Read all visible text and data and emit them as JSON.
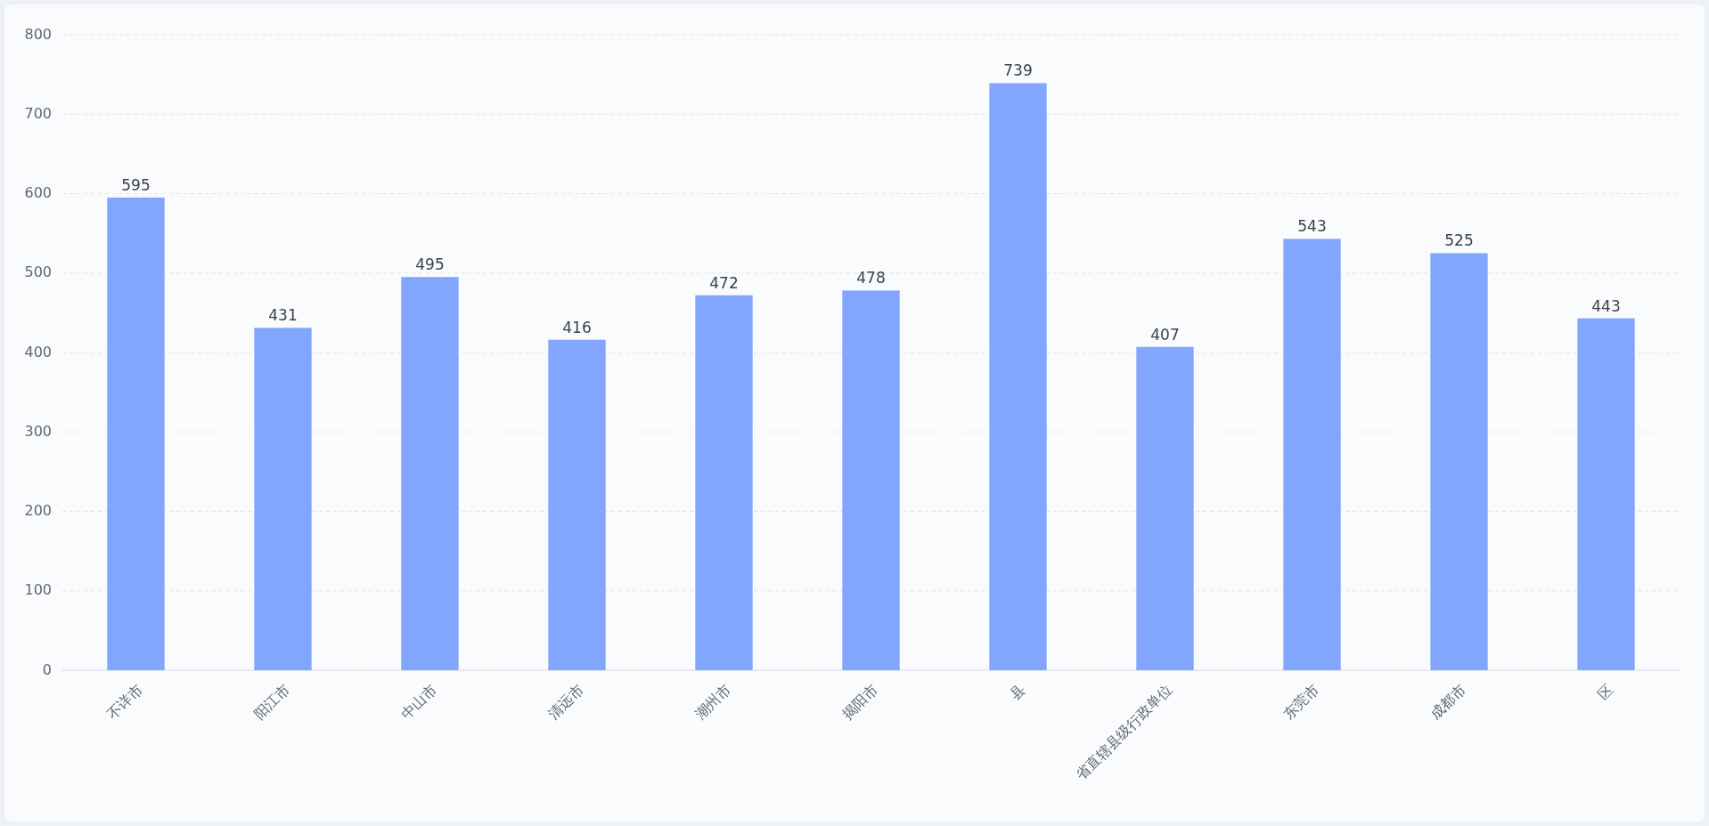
{
  "chart_data": {
    "type": "bar",
    "categories": [
      "不详市",
      "阳江市",
      "中山市",
      "清远市",
      "潮州市",
      "揭阳市",
      "县",
      "省直辖县级行政单位",
      "东莞市",
      "成都市",
      "区"
    ],
    "values": [
      595,
      431,
      495,
      416,
      472,
      478,
      739,
      407,
      543,
      525,
      443
    ],
    "color": "#82a6fd",
    "ylim": [
      0,
      800
    ],
    "yticks": [
      0,
      100,
      200,
      300,
      400,
      500,
      600,
      700,
      800
    ],
    "grid": "y",
    "data_labels": true
  }
}
